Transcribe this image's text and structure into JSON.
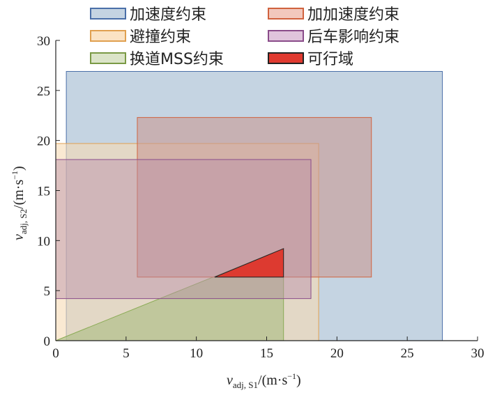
{
  "chart_data": {
    "type": "area",
    "title": "",
    "xlabel": {
      "var": "v",
      "sub": "adj, S1",
      "unit": "/(m·s",
      "exp": "−1",
      "close": ")"
    },
    "ylabel": {
      "var": "v",
      "sub": "adj, S2",
      "unit": "/(m·s",
      "exp": "−1",
      "close": ")"
    },
    "xlim": [
      0,
      30
    ],
    "ylim": [
      0,
      30
    ],
    "xticks": [
      "0",
      "5",
      "10",
      "15",
      "20",
      "25",
      "30"
    ],
    "yticks": [
      "5",
      "10",
      "15",
      "20",
      "25",
      "30"
    ],
    "xtick_values": [
      0,
      5,
      10,
      15,
      20,
      25,
      30
    ],
    "ytick_values": [
      5,
      10,
      15,
      20,
      25,
      30
    ],
    "legend_position": "top",
    "series": [
      {
        "name": "加速度约束",
        "fill": "#c5d4e2",
        "stroke": "#4a6fa8",
        "opacity": 1,
        "points": [
          [
            0.75,
            0
          ],
          [
            27.5,
            0
          ],
          [
            27.5,
            26.9
          ],
          [
            0.75,
            26.9
          ]
        ]
      },
      {
        "name": "避撞约束",
        "fill": "#f6dbb4",
        "stroke": "#e0a050",
        "opacity": 0.6,
        "points": [
          [
            0,
            0
          ],
          [
            18.7,
            0
          ],
          [
            18.7,
            19.7
          ],
          [
            0,
            19.7
          ]
        ]
      },
      {
        "name": "换道MSS约束",
        "fill": "#a9bd80",
        "stroke": "#8aab55",
        "opacity": 0.6,
        "points": [
          [
            0,
            0
          ],
          [
            16.2,
            0
          ],
          [
            16.2,
            9.2
          ]
        ]
      },
      {
        "name": "加加速度约束",
        "fill": "#c89a95",
        "stroke": "#d0623e",
        "opacity": 0.6,
        "points": [
          [
            5.8,
            6.35
          ],
          [
            22.45,
            6.35
          ],
          [
            22.45,
            22.3
          ],
          [
            5.8,
            22.3
          ]
        ]
      },
      {
        "name": "后车影响约束",
        "fill": "#b88ea8",
        "stroke": "#8a4c8a",
        "opacity": 0.45,
        "points": [
          [
            0,
            4.2
          ],
          [
            18.15,
            4.2
          ],
          [
            18.15,
            18.1
          ],
          [
            0,
            18.1
          ]
        ]
      },
      {
        "name": "可行域",
        "fill": "#dd3a30",
        "stroke": "#222222",
        "opacity": 1,
        "points": [
          [
            11.3,
            6.35
          ],
          [
            16.2,
            9.2
          ],
          [
            16.2,
            6.35
          ]
        ]
      }
    ],
    "legend": [
      {
        "label": "加速度约束",
        "fill": "#c5d4e2",
        "stroke": "#4a6fa8"
      },
      {
        "label": "加加速度约束",
        "fill": "#f2c8bd",
        "stroke": "#d0623e"
      },
      {
        "label": "避撞约束",
        "fill": "#fbe3c4",
        "stroke": "#e0a050"
      },
      {
        "label": "后车影响约束",
        "fill": "#e0c4dc",
        "stroke": "#8a4c8a"
      },
      {
        "label": "换道MSS约束",
        "fill": "#dbe4c8",
        "stroke": "#7a9a45"
      },
      {
        "label": "可行域",
        "fill": "#e03a30",
        "stroke": "#222222"
      }
    ]
  }
}
